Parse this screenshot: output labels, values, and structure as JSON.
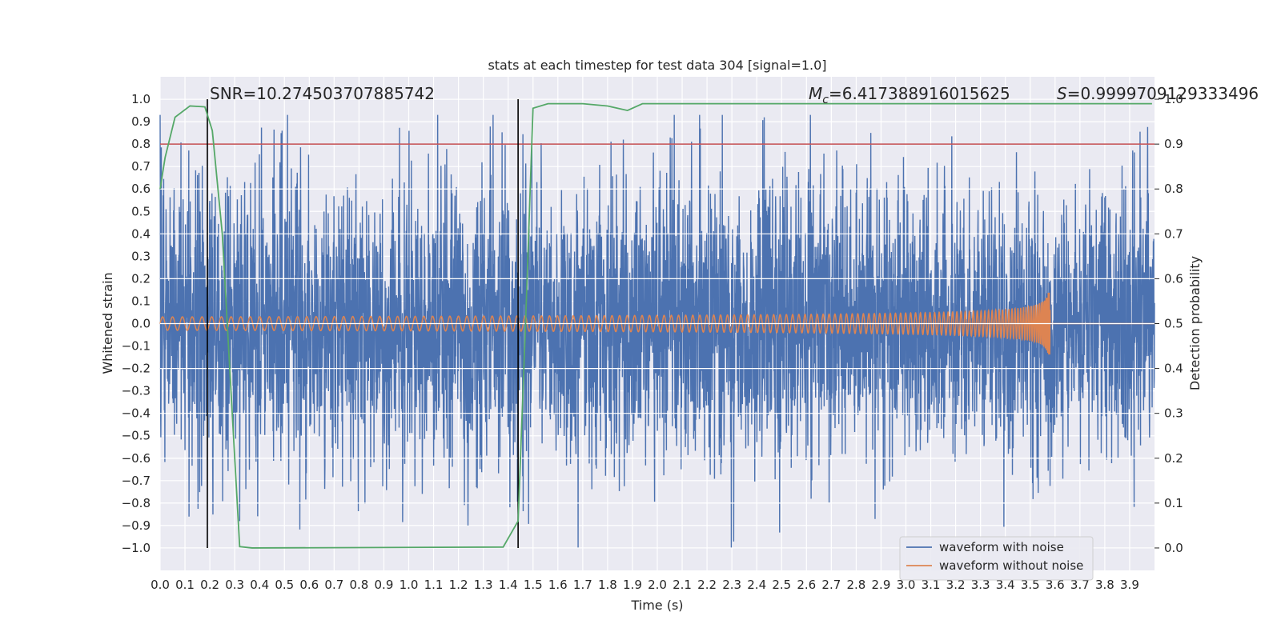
{
  "chart_data": {
    "type": "line",
    "title": "stats at each timestep for test data 304 [signal=1.0]",
    "xlabel": "Time (s)",
    "ylabel": "Whitened strain",
    "y2label": "Detection probability",
    "xlim": [
      0.0,
      4.0
    ],
    "ylim": [
      -1.1,
      1.1
    ],
    "y2lim": [
      -0.05,
      1.05
    ],
    "grid": true,
    "x_ticks": [
      "0.0",
      "0.1",
      "0.2",
      "0.3",
      "0.4",
      "0.5",
      "0.6",
      "0.7",
      "0.8",
      "0.9",
      "1.0",
      "1.1",
      "1.2",
      "1.3",
      "1.4",
      "1.5",
      "1.6",
      "1.7",
      "1.8",
      "1.9",
      "2.0",
      "2.1",
      "2.2",
      "2.3",
      "2.4",
      "2.5",
      "2.6",
      "2.7",
      "2.8",
      "2.9",
      "3.0",
      "3.1",
      "3.2",
      "3.3",
      "3.4",
      "3.5",
      "3.6",
      "3.7",
      "3.8",
      "3.9"
    ],
    "y_ticks": [
      "1.0",
      "0.9",
      "0.8",
      "0.7",
      "0.6",
      "0.5",
      "0.4",
      "0.3",
      "0.2",
      "0.1",
      "0.0",
      "−0.1",
      "−0.2",
      "−0.3",
      "−0.4",
      "−0.5",
      "−0.6",
      "−0.7",
      "−0.8",
      "−0.9",
      "−1.0"
    ],
    "y2_ticks": [
      "1.0",
      "0.9",
      "0.8",
      "0.7",
      "0.6",
      "0.5",
      "0.4",
      "0.3",
      "0.2",
      "0.1",
      "0.0"
    ],
    "annotations": {
      "snr": "SNR=10.274503707885742",
      "mc_symbol": "M",
      "mc_sub": "c",
      "mc_value": "=6.417388916015625",
      "s_symbol": "S",
      "s_value": "=0.9999709129333496"
    },
    "threshold_y2": 0.9,
    "vertical_lines_x": [
      0.19,
      1.44
    ],
    "merger_time": 3.58,
    "series": [
      {
        "name": "waveform with noise",
        "color": "#4c72b0",
        "amplitude": 0.3,
        "spike_max": 0.93
      },
      {
        "name": "waveform without noise",
        "color": "#dd8452",
        "amp_start": 0.03,
        "amp_end": 0.3,
        "f_start": 25,
        "f_end": 250
      },
      {
        "color": "#55a868",
        "x": [
          0.0,
          0.02,
          0.06,
          0.12,
          0.18,
          0.21,
          0.25,
          0.28,
          0.32,
          0.37,
          1.38,
          1.44,
          1.47,
          1.5,
          1.56,
          1.7,
          1.8,
          1.88,
          1.94,
          3.99
        ],
        "y2": [
          0.8,
          0.87,
          0.96,
          0.985,
          0.983,
          0.93,
          0.7,
          0.4,
          0.003,
          0.0,
          0.002,
          0.06,
          0.5,
          0.98,
          0.99,
          0.99,
          0.985,
          0.975,
          0.99,
          0.99
        ]
      }
    ],
    "threshold_color": "#c44e52",
    "vline_color": "#000000",
    "background": "#eaeaf2"
  }
}
